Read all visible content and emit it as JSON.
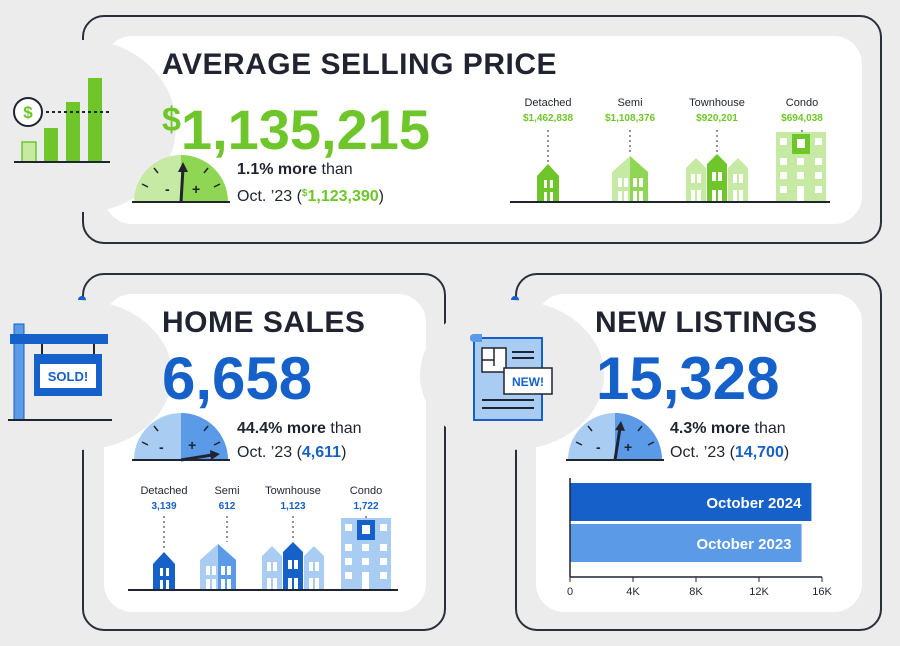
{
  "colors": {
    "green": "#6fc62b",
    "green_light": "#c6eaa3",
    "blue": "#1560c9",
    "blue_mid": "#5a9ae6",
    "blue_light": "#a9cdf2",
    "dark": "#1f2430"
  },
  "asp": {
    "title": "AVERAGE SELLING PRICE",
    "value": "$1,135,215",
    "value_dollar": "$",
    "value_num": "1,135,215",
    "pct": "1.1% more",
    "than": "than",
    "prior_label": "Oct. ’23 (",
    "prior_dollar": "$",
    "prior_value": "1,123,390",
    "prior_close": ")",
    "types": [
      {
        "label": "Detached",
        "value": "$1,462,838"
      },
      {
        "label": "Semi",
        "value": "$1,108,376"
      },
      {
        "label": "Townhouse",
        "value": "$920,201"
      },
      {
        "label": "Condo",
        "value": "$694,038"
      }
    ],
    "icon": "dollar-bar-chart-icon"
  },
  "sales": {
    "title": "HOME SALES",
    "value": "6,658",
    "pct": "44.4% more",
    "than": "than",
    "prior_label": "Oct. ’23 (",
    "prior_value": "4,611",
    "prior_close": ")",
    "sign": "SOLD!",
    "types": [
      {
        "label": "Detached",
        "value": "3,139"
      },
      {
        "label": "Semi",
        "value": "612"
      },
      {
        "label": "Townhouse",
        "value": "1,123"
      },
      {
        "label": "Condo",
        "value": "1,722"
      }
    ],
    "icon": "sold-sign-icon"
  },
  "listings": {
    "title": "NEW LISTINGS",
    "value": "15,328",
    "pct": "4.3% more",
    "than": "than",
    "prior_label": "Oct. ’23 (",
    "prior_value": "14,700",
    "prior_close": ")",
    "badge": "NEW!",
    "icon": "new-listing-document-icon"
  },
  "gauge_signs": {
    "minus": "-",
    "plus": "+"
  },
  "chart_data": {
    "type": "bar",
    "orientation": "horizontal",
    "categories": [
      "October 2024",
      "October 2023"
    ],
    "values": [
      15328,
      14700
    ],
    "xlim": [
      0,
      16000
    ],
    "xticks": [
      "0",
      "4K",
      "8K",
      "12K",
      "16K"
    ],
    "xtick_values": [
      0,
      4000,
      8000,
      12000,
      16000
    ],
    "colors": [
      "#1560c9",
      "#5a9ae6"
    ]
  }
}
